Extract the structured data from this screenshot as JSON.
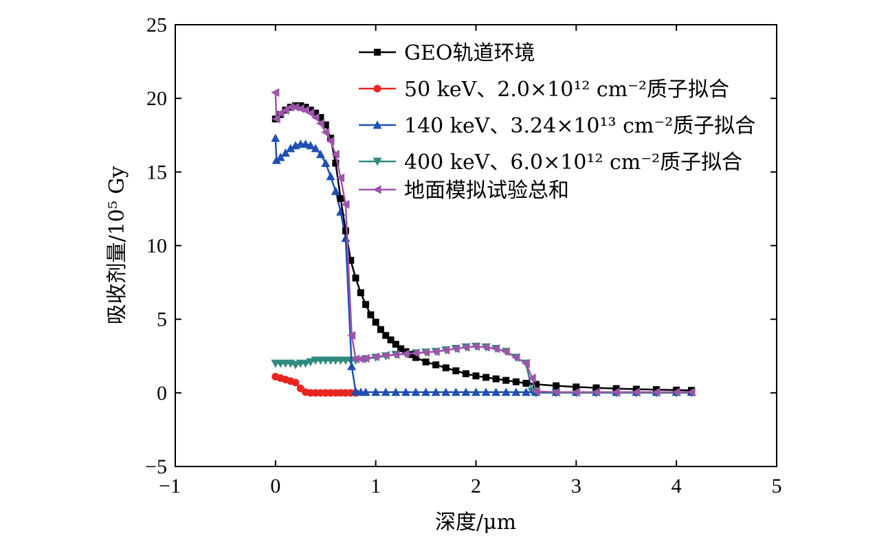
{
  "chart_data": {
    "type": "line",
    "xlabel": "深度/μm",
    "ylabel": "吸收剂量/10⁵ Gy",
    "xlim": [
      -1,
      5
    ],
    "ylim": [
      -5,
      25
    ],
    "xticks": [
      "−1",
      "0",
      "1",
      "2",
      "3",
      "4",
      "5"
    ],
    "yticks": [
      "−5",
      "0",
      "5",
      "10",
      "15",
      "20",
      "25"
    ],
    "legend_position": "top-right",
    "grid": false,
    "series": [
      {
        "name": "GEO轨道环境",
        "color": "#000000",
        "marker": "square",
        "x": [
          0,
          0.05,
          0.1,
          0.15,
          0.2,
          0.25,
          0.3,
          0.35,
          0.4,
          0.45,
          0.5,
          0.55,
          0.6,
          0.65,
          0.7,
          0.75,
          0.8,
          0.85,
          0.9,
          0.95,
          1.0,
          1.05,
          1.1,
          1.15,
          1.2,
          1.25,
          1.3,
          1.35,
          1.4,
          1.5,
          1.6,
          1.7,
          1.8,
          1.9,
          2.0,
          2.1,
          2.2,
          2.3,
          2.4,
          2.5,
          2.6,
          2.8,
          3.0,
          3.2,
          3.4,
          3.6,
          3.8,
          4.0,
          4.15
        ],
        "y": [
          18.6,
          18.9,
          19.2,
          19.4,
          19.5,
          19.5,
          19.4,
          19.2,
          19.0,
          18.7,
          18.2,
          17.3,
          15.6,
          13.2,
          11.0,
          9.0,
          7.8,
          6.8,
          6.0,
          5.3,
          4.8,
          4.3,
          3.9,
          3.6,
          3.3,
          3.0,
          2.8,
          2.6,
          2.4,
          2.1,
          1.9,
          1.7,
          1.5,
          1.3,
          1.15,
          1.05,
          0.95,
          0.85,
          0.75,
          0.65,
          0.58,
          0.48,
          0.4,
          0.34,
          0.29,
          0.25,
          0.22,
          0.19,
          0.17
        ]
      },
      {
        "name": "50 keV、2.0×10¹² cm⁻²质子拟合",
        "color": "#e8251e",
        "marker": "circle",
        "x": [
          0,
          0.05,
          0.1,
          0.15,
          0.2,
          0.25,
          0.3,
          0.35,
          0.4,
          0.45,
          0.5,
          0.55,
          0.6,
          0.65,
          0.7,
          0.75,
          0.8
        ],
        "y": [
          1.1,
          1.0,
          0.9,
          0.8,
          0.7,
          0.3,
          0.05,
          0.0,
          0.0,
          0.0,
          0.0,
          0.0,
          0.0,
          0.0,
          0.0,
          0.0,
          0.0
        ]
      },
      {
        "name": "140 keV、3.24×10¹³ cm⁻²质子拟合",
        "color": "#1f4fb4",
        "marker": "triangle-up",
        "x": [
          0,
          0.01,
          0.05,
          0.1,
          0.15,
          0.2,
          0.25,
          0.3,
          0.35,
          0.4,
          0.45,
          0.5,
          0.55,
          0.6,
          0.65,
          0.7,
          0.76,
          0.8,
          0.85,
          0.9,
          1.0,
          1.1,
          1.2,
          1.3,
          1.4,
          1.5,
          1.6,
          1.7,
          1.8,
          1.9,
          2.0,
          2.1,
          2.2,
          2.3,
          2.4,
          2.5,
          2.6,
          2.8,
          3.0,
          3.2,
          3.4,
          3.6,
          3.8,
          4.0,
          4.15
        ],
        "y": [
          17.3,
          15.8,
          16.0,
          16.3,
          16.6,
          16.8,
          16.9,
          16.9,
          16.8,
          16.6,
          16.2,
          15.6,
          14.7,
          13.7,
          12.3,
          10.5,
          1.8,
          0.1,
          0.05,
          0.05,
          0.05,
          0.05,
          0.05,
          0.05,
          0.05,
          0.05,
          0.05,
          0.05,
          0.05,
          0.05,
          0.05,
          0.05,
          0.05,
          0.05,
          0.05,
          0.05,
          0.05,
          0.05,
          0.05,
          0.05,
          0.05,
          0.05,
          0.05,
          0.05,
          0.05
        ]
      },
      {
        "name": "400 keV、6.0×10¹² cm⁻²质子拟合",
        "color": "#2f8a80",
        "marker": "triangle-down",
        "x": [
          0,
          0.05,
          0.1,
          0.15,
          0.2,
          0.25,
          0.3,
          0.35,
          0.4,
          0.45,
          0.5,
          0.55,
          0.6,
          0.65,
          0.7,
          0.75,
          0.8,
          0.9,
          1.0,
          1.1,
          1.2,
          1.3,
          1.4,
          1.5,
          1.6,
          1.7,
          1.8,
          1.9,
          2.0,
          2.1,
          2.2,
          2.3,
          2.4,
          2.5,
          2.56,
          2.6,
          2.8,
          3.0,
          3.2,
          3.4,
          3.6,
          3.8,
          4.0,
          4.15
        ],
        "y": [
          2.0,
          2.0,
          2.0,
          2.0,
          1.9,
          2.0,
          2.0,
          2.1,
          2.2,
          2.2,
          2.2,
          2.2,
          2.2,
          2.2,
          2.2,
          2.2,
          2.2,
          2.3,
          2.4,
          2.5,
          2.6,
          2.65,
          2.7,
          2.75,
          2.8,
          2.9,
          3.0,
          3.1,
          3.15,
          3.1,
          3.0,
          2.8,
          2.4,
          2.0,
          0.1,
          0.0,
          0.0,
          0.0,
          0.0,
          0.0,
          0.0,
          0.0,
          0.0,
          0.0
        ]
      },
      {
        "name": "地面模拟试验总和",
        "color": "#9c55a8",
        "marker": "triangle-left",
        "x": [
          0,
          0.01,
          0.05,
          0.1,
          0.15,
          0.2,
          0.25,
          0.3,
          0.35,
          0.4,
          0.45,
          0.5,
          0.55,
          0.6,
          0.65,
          0.7,
          0.76,
          0.8,
          0.85,
          0.9,
          1.0,
          1.1,
          1.2,
          1.3,
          1.4,
          1.5,
          1.6,
          1.7,
          1.8,
          1.9,
          2.0,
          2.1,
          2.2,
          2.3,
          2.4,
          2.5,
          2.56,
          2.6,
          2.8,
          3.0,
          3.2,
          3.4,
          3.6,
          3.8,
          4.0,
          4.15
        ],
        "y": [
          20.4,
          18.6,
          19.0,
          19.2,
          19.4,
          19.4,
          19.3,
          19.2,
          19.0,
          18.7,
          18.3,
          17.7,
          17.1,
          16.2,
          14.6,
          12.8,
          3.9,
          2.3,
          2.3,
          2.35,
          2.45,
          2.55,
          2.6,
          2.65,
          2.7,
          2.75,
          2.8,
          2.9,
          3.0,
          3.1,
          3.15,
          3.1,
          3.0,
          2.8,
          2.4,
          2.0,
          1.0,
          0.1,
          0.05,
          0.05,
          0.05,
          0.05,
          0.05,
          0.05,
          0.05,
          0.05
        ]
      }
    ]
  }
}
